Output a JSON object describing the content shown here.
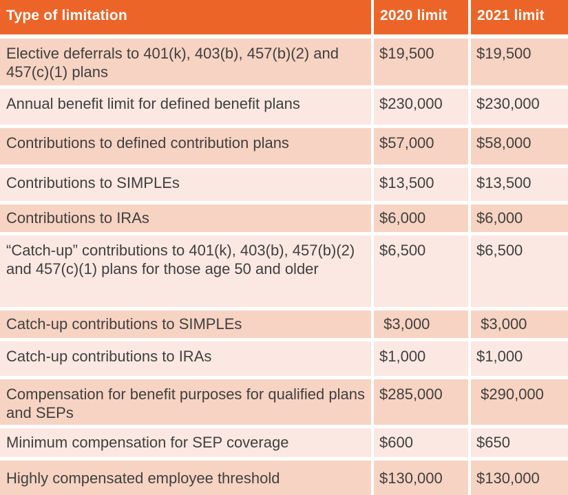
{
  "chart_data": {
    "type": "table",
    "columns": [
      "Type of limitation",
      "2020 limit",
      "2021 limit"
    ],
    "rows": [
      [
        "Elective deferrals to 401(k), 403(b), 457(b)(2) and 457(c)(1) plans",
        "$19,500",
        "$19,500"
      ],
      [
        "Annual benefit limit for defined benefit plans",
        "$230,000",
        "$230,000"
      ],
      [
        "Contributions to defined contribution plans",
        "$57,000",
        "$58,000"
      ],
      [
        "Contributions to SIMPLEs",
        "$13,500",
        "$13,500"
      ],
      [
        "Contributions to IRAs",
        "$6,000",
        "$6,000"
      ],
      [
        "“Catch-up” contributions to 401(k), 403(b), 457(b)(2) and 457(c)(1) plans for those age 50 and older",
        "$6,500",
        "$6,500"
      ],
      [
        "Catch-up contributions to SIMPLEs",
        " $3,000",
        " $3,000"
      ],
      [
        "Catch-up contributions to IRAs",
        "$1,000",
        "$1,000"
      ],
      [
        "Compensation for benefit purposes for qualified plans and SEPs",
        "$285,000",
        " $290,000"
      ],
      [
        "Minimum compensation for SEP coverage",
        "$600",
        "$650"
      ],
      [
        "Highly compensated employee threshold",
        "$130,000",
        "$130,000"
      ]
    ],
    "layout": {
      "header_position": "top",
      "striped_rows": true,
      "first_body_row_shade": "dark"
    },
    "colors": {
      "header_bg": "#EC6428",
      "header_text": "#FFFFFF",
      "row_dark_bg": "#F7D3C3",
      "row_light_bg": "#FBE8E2",
      "body_text": "#403F3D",
      "separator": "#FFFFFF"
    }
  }
}
